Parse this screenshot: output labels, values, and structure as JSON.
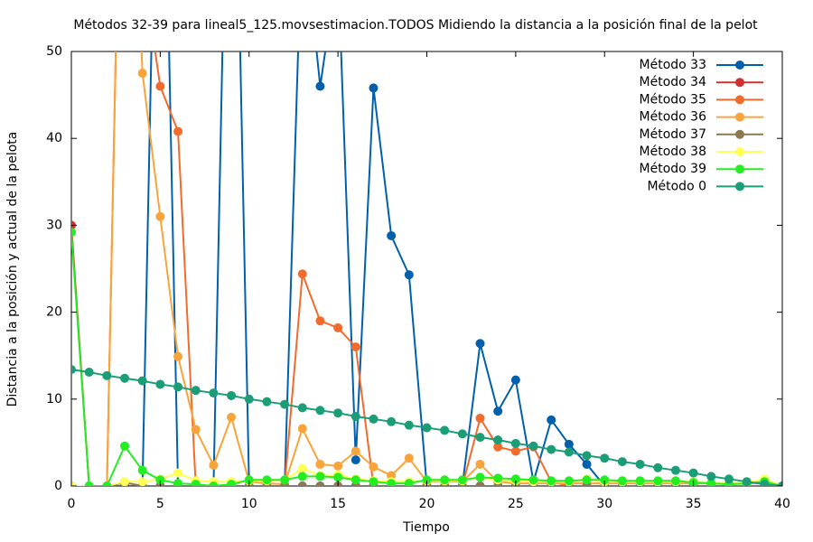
{
  "chart_data": {
    "type": "line",
    "title": "Métodos 32-39 para lineal5_125.movsestimacion.TODOS Midiendo la distancia a la posición final de la pelot",
    "xlabel": "Tiempo",
    "ylabel": "Distancia a la posición y actual de la pelota",
    "x": [
      0,
      1,
      2,
      3,
      4,
      5,
      6,
      7,
      8,
      9,
      10,
      11,
      12,
      13,
      14,
      15,
      16,
      17,
      18,
      19,
      20,
      21,
      22,
      23,
      24,
      25,
      26,
      27,
      28,
      29,
      30,
      31,
      32,
      33,
      34,
      35,
      36,
      37,
      38,
      39,
      40
    ],
    "xlim": [
      0,
      40
    ],
    "xticks": [
      0,
      5,
      10,
      15,
      20,
      25,
      30,
      35,
      40
    ],
    "ylim": [
      0,
      50
    ],
    "yticks": [
      0,
      10,
      20,
      30,
      40,
      50
    ],
    "legend": "top-right",
    "series": [
      {
        "name": "Método 33",
        "color": "#0060ad",
        "values": [
          0,
          0,
          0,
          0,
          0,
          100,
          0,
          0,
          0,
          100,
          0,
          0,
          0,
          66,
          46,
          60,
          3,
          45.8,
          28.8,
          24.3,
          0,
          0,
          0,
          16.4,
          8.6,
          12.2,
          0.5,
          7.6,
          4.8,
          2.5,
          0,
          0,
          0,
          0,
          0,
          0,
          0,
          0,
          0,
          0,
          0
        ]
      },
      {
        "name": "Método 34",
        "color": "#d03030",
        "values": [
          30,
          0,
          0,
          0,
          0,
          0,
          0,
          0,
          0,
          0,
          0,
          0,
          0,
          0,
          0,
          0,
          0,
          0,
          0,
          0,
          0,
          0,
          0,
          0,
          0,
          0,
          0,
          0,
          0,
          0,
          0,
          0,
          0,
          0,
          0,
          0,
          0,
          0,
          0,
          0,
          0
        ]
      },
      {
        "name": "Método 35",
        "color": "#f36b2c",
        "values": [
          0,
          0,
          0,
          100,
          60,
          46,
          40.8,
          0,
          0,
          0,
          0,
          0,
          0,
          24.4,
          19.0,
          18.2,
          16.0,
          0,
          0,
          0,
          0,
          0,
          0,
          7.8,
          4.5,
          4.0,
          4.5,
          0.5,
          0,
          0,
          0,
          0,
          0,
          0,
          0,
          0,
          0,
          0,
          0,
          0,
          0
        ]
      },
      {
        "name": "Método 36",
        "color": "#f9a43a",
        "values": [
          0,
          0,
          0,
          100,
          47.5,
          31,
          14.9,
          6.5,
          2.4,
          7.9,
          0.5,
          0.3,
          0.2,
          6.6,
          2.5,
          2.3,
          4.0,
          2.2,
          1.2,
          3.2,
          0.5,
          0.5,
          0.5,
          2.5,
          0.5,
          0.3,
          0.3,
          0.3,
          0.3,
          0.3,
          0.3,
          0.3,
          0.3,
          0.3,
          0.3,
          0.3,
          0.3,
          0.3,
          0.3,
          0.3,
          0
        ]
      },
      {
        "name": "Método 37",
        "color": "#8c7853",
        "values": [
          0,
          0,
          0,
          0.4,
          0,
          0,
          0,
          0,
          0,
          0,
          0,
          0,
          0,
          0,
          0,
          0,
          0,
          0,
          0,
          0,
          0,
          0,
          0,
          0,
          0,
          0,
          0,
          0,
          0,
          0,
          0,
          0,
          0,
          0,
          0,
          0,
          0,
          0,
          0,
          0,
          0
        ]
      },
      {
        "name": "Método 38",
        "color": "#ffff55",
        "values": [
          0,
          0,
          0,
          0.5,
          0.5,
          0.8,
          1.5,
          0.6,
          0.5,
          0.5,
          0.6,
          0.6,
          0.7,
          2.0,
          1.2,
          1.3,
          0.8,
          0.6,
          0.5,
          0.5,
          0.6,
          0.6,
          0.6,
          1.0,
          0.7,
          0.6,
          0.5,
          0.5,
          0.5,
          0.8,
          0.5,
          0.5,
          0.5,
          0.5,
          0.5,
          0.5,
          0.4,
          0.4,
          0.4,
          0.8,
          0
        ]
      },
      {
        "name": "Método 39",
        "color": "#22ee22",
        "values": [
          29.2,
          0,
          0,
          4.6,
          1.8,
          0.7,
          0.3,
          0.2,
          0,
          0.2,
          0.7,
          0.7,
          0.7,
          1.1,
          1.1,
          1.0,
          0.7,
          0.5,
          0.3,
          0.3,
          0.7,
          0.7,
          0.7,
          1.0,
          0.9,
          0.8,
          0.7,
          0.6,
          0.6,
          0.7,
          0.7,
          0.6,
          0.6,
          0.6,
          0.6,
          0.4,
          0.3,
          0.2,
          0.3,
          0.5,
          0
        ]
      },
      {
        "name": "Método 0",
        "color": "#1b9e77",
        "values": [
          13.4,
          13.1,
          12.7,
          12.4,
          12.1,
          11.7,
          11.4,
          11.0,
          10.7,
          10.4,
          10.0,
          9.7,
          9.4,
          9.0,
          8.7,
          8.4,
          8.0,
          7.7,
          7.4,
          7.0,
          6.7,
          6.4,
          6.0,
          5.6,
          5.3,
          4.9,
          4.6,
          4.2,
          3.9,
          3.5,
          3.2,
          2.8,
          2.5,
          2.1,
          1.8,
          1.5,
          1.1,
          0.8,
          0.5,
          0.2,
          0
        ]
      }
    ]
  }
}
